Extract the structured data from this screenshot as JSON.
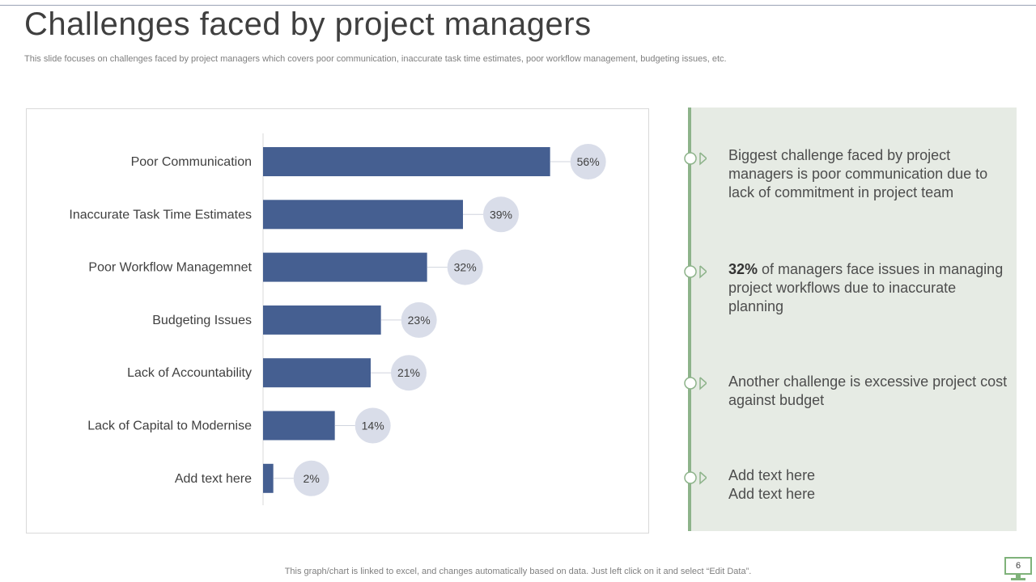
{
  "slide": {
    "title": "Challenges faced by project managers",
    "subtitle": "This slide focuses on challenges faced by project managers which covers poor communication, inaccurate task time estimates, poor workflow management, budgeting issues, etc.",
    "footer": "This graph/chart is linked to excel,  and changes automatically based on data. Just left click on it and select “Edit Data”.",
    "page_number": "6"
  },
  "chart_data": {
    "type": "bar",
    "orientation": "horizontal",
    "title": "",
    "xlabel": "",
    "ylabel": "",
    "categories": [
      "Poor Communication",
      "Inaccurate Task Time Estimates",
      "Poor Workflow Managemnet",
      "Budgeting Issues",
      "Lack of Accountability",
      "Lack of Capital to Modernise",
      "Add text  here"
    ],
    "values": [
      56,
      39,
      32,
      23,
      21,
      14,
      2
    ],
    "value_labels": [
      "56%",
      "39%",
      "32%",
      "23%",
      "21%",
      "14%",
      "2%"
    ],
    "xlim": [
      0,
      60
    ],
    "unit": "%",
    "grid": false,
    "bar_color": "#455f91",
    "label_bubble_color": "#d9dde9"
  },
  "info_panel": {
    "accent_color": "#8db38a",
    "items": [
      {
        "text": "Biggest challenge faced by project managers is poor communication due to lack of commitment in project team"
      },
      {
        "highlight": "32%",
        "text": " of managers face issues in managing project workflows due to inaccurate planning"
      },
      {
        "text": "Another challenge is excessive project cost against budget"
      },
      {
        "line1": "Add text here",
        "line2": "Add text here"
      }
    ]
  }
}
